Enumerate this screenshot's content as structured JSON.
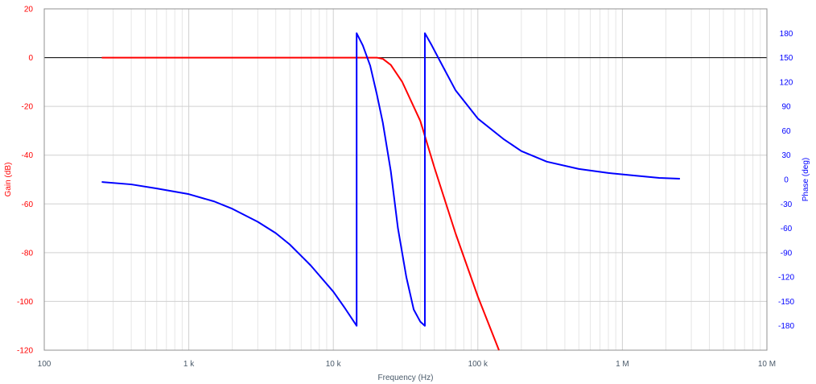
{
  "chart_data": {
    "type": "line",
    "xlabel": "Frequency (Hz)",
    "ylabel_left": "Gain (dB)",
    "ylabel_right": "Phase (deg)",
    "x_scale": "log",
    "xlim": [
      100,
      10000000
    ],
    "x_tick_values": [
      100,
      1000,
      10000,
      100000,
      1000000,
      10000000
    ],
    "x_tick_labels": [
      "100",
      "1 k",
      "10 k",
      "100 k",
      "1 M",
      "10 M"
    ],
    "ylim_left": [
      -120,
      20
    ],
    "y_left_ticks": [
      20,
      0,
      -20,
      -40,
      -60,
      -80,
      -100,
      -120
    ],
    "ylim_right": [
      -210,
      210
    ],
    "y_right_ticks": [
      180,
      150,
      120,
      90,
      60,
      30,
      0,
      -30,
      -60,
      -90,
      -120,
      -150,
      -180
    ],
    "grid": true,
    "reference_line_db": 0,
    "colors": {
      "gain": "#ff0000",
      "phase": "#0000ff",
      "left_axis": "#ff0000",
      "right_axis": "#0000ff",
      "grid": "#d0d0d0",
      "zero_line": "#000000"
    },
    "series": [
      {
        "axis": "left",
        "color": "#ff0000",
        "x": [
          250,
          1000,
          10000,
          15000,
          18000,
          20000,
          22000,
          25000,
          30000,
          40000,
          50000,
          70000,
          100000,
          140000
        ],
        "y": [
          0,
          0,
          0,
          0,
          0,
          0,
          -0.5,
          -3,
          -10,
          -26,
          -45,
          -72,
          -98,
          -120
        ]
      },
      {
        "axis": "right",
        "color": "#0000ff",
        "x": [
          250,
          400,
          600,
          1000,
          1500,
          2000,
          3000,
          4000,
          5000,
          6000,
          7000,
          8000,
          10000,
          12000,
          14500,
          14500,
          16000,
          18000,
          20000,
          22000,
          25000,
          28000,
          32000,
          36000,
          40000,
          43000,
          43000,
          48000,
          55000,
          70000,
          100000,
          150000,
          200000,
          300000,
          500000,
          800000,
          1200000,
          1800000,
          2500000
        ],
        "y": [
          -3,
          -6,
          -11,
          -18,
          -27,
          -36,
          -52,
          -66,
          -80,
          -94,
          -106,
          -118,
          -138,
          -158,
          -180,
          180,
          165,
          140,
          105,
          70,
          10,
          -60,
          -120,
          -160,
          -175,
          -180,
          180,
          165,
          145,
          110,
          75,
          50,
          35,
          22,
          13,
          8,
          5,
          2,
          1
        ]
      }
    ]
  }
}
